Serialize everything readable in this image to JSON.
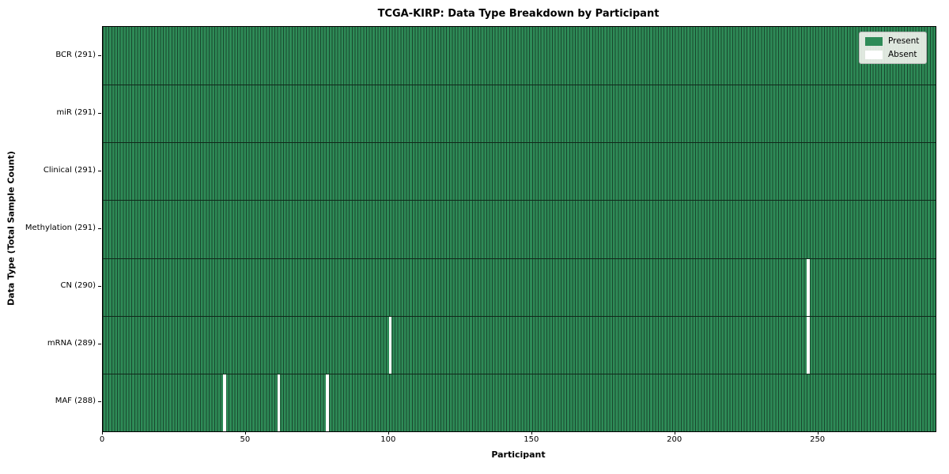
{
  "chart_data": {
    "type": "heatmap",
    "title": "TCGA-KIRP: Data Type Breakdown by Participant",
    "xlabel": "Participant",
    "ylabel": "Data Type (Total Sample Count)",
    "x_ticks": [
      0,
      50,
      100,
      150,
      200,
      250
    ],
    "x_range": [
      0,
      291
    ],
    "n_participants": 291,
    "grid": false,
    "legend_position": "upper right",
    "legend": [
      {
        "label": "Present",
        "color": "#2e8b57"
      },
      {
        "label": "Absent",
        "color": "#ffffff"
      }
    ],
    "colors": {
      "present": "#2e8b57",
      "absent": "#ffffff",
      "cell_edge": "#19472e",
      "row_divider": "#10281a",
      "axis": "#000000"
    },
    "rows": [
      {
        "label": "BCR (291)",
        "data_type": "BCR",
        "total_samples": 291,
        "absent_participants": []
      },
      {
        "label": "miR (291)",
        "data_type": "miR",
        "total_samples": 291,
        "absent_participants": []
      },
      {
        "label": "Clinical (291)",
        "data_type": "Clinical",
        "total_samples": 291,
        "absent_participants": []
      },
      {
        "label": "Methylation (291)",
        "data_type": "Methylation",
        "total_samples": 291,
        "absent_participants": []
      },
      {
        "label": "CN (290)",
        "data_type": "CN",
        "total_samples": 290,
        "absent_participants": [
          246
        ]
      },
      {
        "label": "mRNA (289)",
        "data_type": "mRNA",
        "total_samples": 289,
        "absent_participants": [
          100,
          246
        ]
      },
      {
        "label": "MAF (288)",
        "data_type": "MAF",
        "total_samples": 288,
        "absent_participants": [
          42,
          61,
          78
        ]
      }
    ]
  }
}
